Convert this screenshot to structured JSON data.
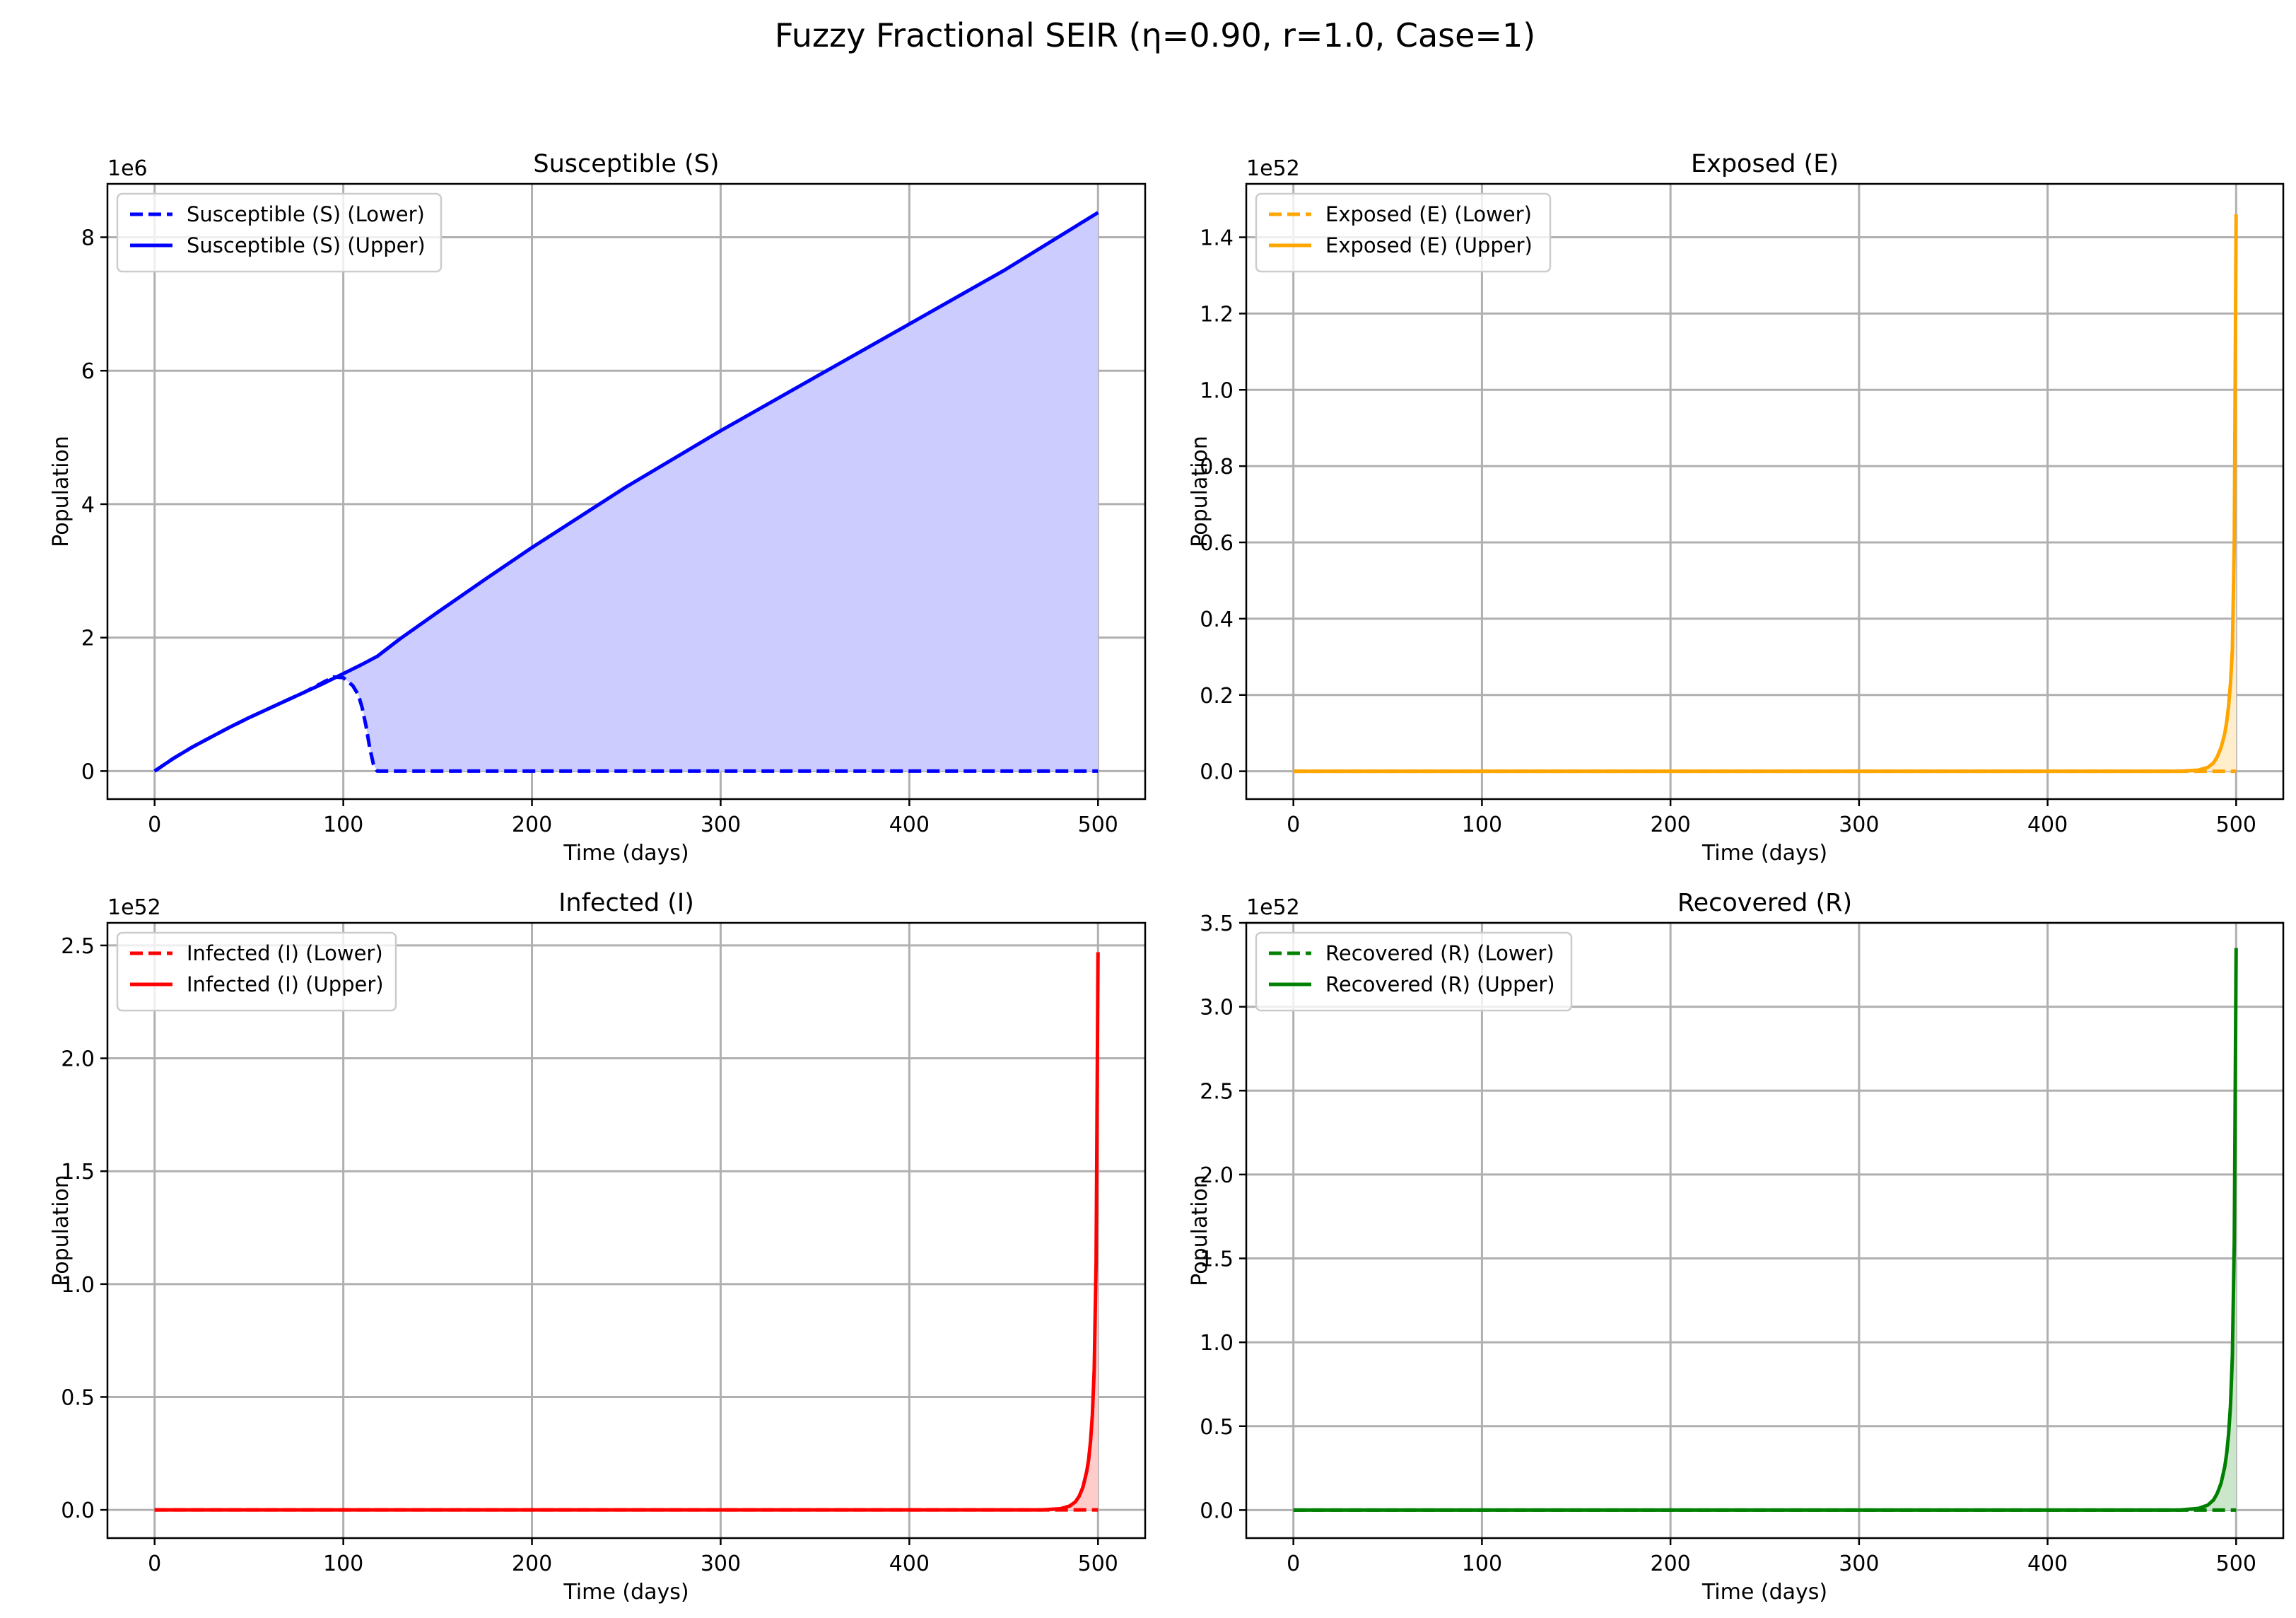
{
  "suptitle": "Fuzzy Fractional SEIR (η=0.90, r=1.0, Case=1)",
  "chart_data": [
    {
      "type": "line",
      "title": "Susceptible (S)",
      "xlabel": "Time (days)",
      "ylabel": "Population",
      "offset_text": "1e6",
      "scale": 1000000.0,
      "xlim": [
        -25,
        525
      ],
      "ylim": [
        -0.42,
        8.8
      ],
      "xticks": [
        0,
        100,
        200,
        300,
        400,
        500
      ],
      "xticklabels": [
        "0",
        "100",
        "200",
        "300",
        "400",
        "500"
      ],
      "yticks": [
        0,
        2,
        4,
        6,
        8
      ],
      "yticklabels": [
        "0",
        "2",
        "4",
        "6",
        "8"
      ],
      "color": "#0000ff",
      "fill_color": "#ccccff",
      "grid": true,
      "legend_position": "upper left",
      "series": [
        {
          "name": "Susceptible (S) (Lower)",
          "style": "dashed",
          "x": [
            0,
            10,
            20,
            30,
            40,
            50,
            60,
            70,
            80,
            90,
            95,
            100,
            105,
            108,
            110,
            112,
            114,
            116,
            118,
            120,
            150,
            200,
            250,
            300,
            350,
            400,
            450,
            500
          ],
          "y": [
            0,
            0.19,
            0.36,
            0.51,
            0.66,
            0.8,
            0.93,
            1.06,
            1.19,
            1.34,
            1.41,
            1.4,
            1.28,
            1.14,
            0.95,
            0.68,
            0.35,
            0.1,
            0,
            0,
            0,
            0,
            0,
            0,
            0,
            0,
            0,
            0
          ]
        },
        {
          "name": "Susceptible (S) (Upper)",
          "style": "solid",
          "x": [
            0,
            10,
            20,
            30,
            40,
            50,
            60,
            70,
            80,
            90,
            100,
            110,
            118,
            130,
            150,
            175,
            200,
            250,
            300,
            350,
            400,
            450,
            500
          ],
          "y": [
            0,
            0.19,
            0.36,
            0.51,
            0.66,
            0.8,
            0.93,
            1.06,
            1.19,
            1.32,
            1.46,
            1.6,
            1.72,
            1.98,
            2.38,
            2.87,
            3.35,
            4.26,
            5.1,
            5.9,
            6.7,
            7.5,
            8.37
          ]
        }
      ]
    },
    {
      "type": "line",
      "title": "Exposed (E)",
      "xlabel": "Time (days)",
      "ylabel": "Population",
      "offset_text": "1e52",
      "scale": 1e+52,
      "xlim": [
        -25,
        525
      ],
      "ylim": [
        -0.073,
        1.54
      ],
      "xticks": [
        0,
        100,
        200,
        300,
        400,
        500
      ],
      "xticklabels": [
        "0",
        "100",
        "200",
        "300",
        "400",
        "500"
      ],
      "yticks": [
        0,
        0.2,
        0.4,
        0.6,
        0.8,
        1.0,
        1.2,
        1.4
      ],
      "yticklabels": [
        "0.0",
        "0.2",
        "0.4",
        "0.6",
        "0.8",
        "1.0",
        "1.2",
        "1.4"
      ],
      "color": "#ffa500",
      "fill_color": "#ffedcc",
      "grid": true,
      "legend_position": "upper left",
      "series": [
        {
          "name": "Exposed (E) (Lower)",
          "style": "dashed",
          "x": [
            0,
            100,
            200,
            300,
            400,
            480,
            490,
            494,
            496,
            497,
            498,
            499,
            500
          ],
          "y": [
            0,
            0,
            0,
            0,
            0,
            0,
            0,
            0,
            0,
            0,
            0,
            0,
            0
          ]
        },
        {
          "name": "Exposed (E) (Upper)",
          "style": "solid",
          "x": [
            0,
            100,
            200,
            300,
            400,
            470,
            480,
            485,
            488,
            490,
            492,
            494,
            495,
            496,
            497,
            498,
            499,
            500
          ],
          "y": [
            0,
            0,
            0,
            0,
            0,
            0,
            0.003,
            0.01,
            0.022,
            0.038,
            0.062,
            0.1,
            0.13,
            0.17,
            0.23,
            0.32,
            0.6,
            1.46
          ]
        }
      ]
    },
    {
      "type": "line",
      "title": "Infected (I)",
      "xlabel": "Time (days)",
      "ylabel": "Population",
      "offset_text": "1e52",
      "scale": 1e+52,
      "xlim": [
        -25,
        525
      ],
      "ylim": [
        -0.125,
        2.6
      ],
      "xticks": [
        0,
        100,
        200,
        300,
        400,
        500
      ],
      "xticklabels": [
        "0",
        "100",
        "200",
        "300",
        "400",
        "500"
      ],
      "yticks": [
        0,
        0.5,
        1.0,
        1.5,
        2.0,
        2.5
      ],
      "yticklabels": [
        "0.0",
        "0.5",
        "1.0",
        "1.5",
        "2.0",
        "2.5"
      ],
      "color": "#ff0000",
      "fill_color": "#ffcccc",
      "grid": true,
      "legend_position": "upper left",
      "series": [
        {
          "name": "Infected (I) (Lower)",
          "style": "dashed",
          "x": [
            0,
            100,
            200,
            300,
            400,
            480,
            490,
            494,
            496,
            498,
            500
          ],
          "y": [
            0,
            0,
            0,
            0,
            0,
            0,
            0,
            0,
            0,
            0,
            0
          ]
        },
        {
          "name": "Infected (I) (Upper)",
          "style": "solid",
          "x": [
            0,
            100,
            200,
            300,
            400,
            470,
            480,
            485,
            488,
            490,
            492,
            494,
            495,
            496,
            497,
            498,
            499,
            500
          ],
          "y": [
            0,
            0,
            0,
            0,
            0,
            0,
            0.005,
            0.017,
            0.035,
            0.06,
            0.1,
            0.17,
            0.22,
            0.3,
            0.42,
            0.62,
            1.1,
            2.47
          ]
        }
      ]
    },
    {
      "type": "line",
      "title": "Recovered (R)",
      "xlabel": "Time (days)",
      "ylabel": "Population",
      "offset_text": "1e52",
      "scale": 1e+52,
      "xlim": [
        -25,
        525
      ],
      "ylim": [
        -0.167,
        3.5
      ],
      "xticks": [
        0,
        100,
        200,
        300,
        400,
        500
      ],
      "xticklabels": [
        "0",
        "100",
        "200",
        "300",
        "400",
        "500"
      ],
      "yticks": [
        0,
        0.5,
        1.0,
        1.5,
        2.0,
        2.5,
        3.0,
        3.5
      ],
      "yticklabels": [
        "0.0",
        "0.5",
        "1.0",
        "1.5",
        "2.0",
        "2.5",
        "3.0",
        "3.5"
      ],
      "color": "#008000",
      "fill_color": "#cce6cc",
      "grid": true,
      "legend_position": "upper left",
      "series": [
        {
          "name": "Recovered (R) (Lower)",
          "style": "dashed",
          "x": [
            0,
            100,
            200,
            300,
            400,
            480,
            490,
            494,
            496,
            498,
            500
          ],
          "y": [
            0,
            0,
            0,
            0,
            0,
            0,
            0,
            0,
            0,
            0,
            0
          ]
        },
        {
          "name": "Recovered (R) (Upper)",
          "style": "solid",
          "x": [
            0,
            100,
            200,
            300,
            400,
            470,
            480,
            485,
            488,
            490,
            492,
            494,
            495,
            496,
            497,
            498,
            499,
            500
          ],
          "y": [
            0,
            0,
            0,
            0,
            0,
            0,
            0.01,
            0.03,
            0.06,
            0.1,
            0.16,
            0.26,
            0.34,
            0.45,
            0.62,
            0.92,
            1.6,
            3.35
          ]
        }
      ]
    }
  ]
}
